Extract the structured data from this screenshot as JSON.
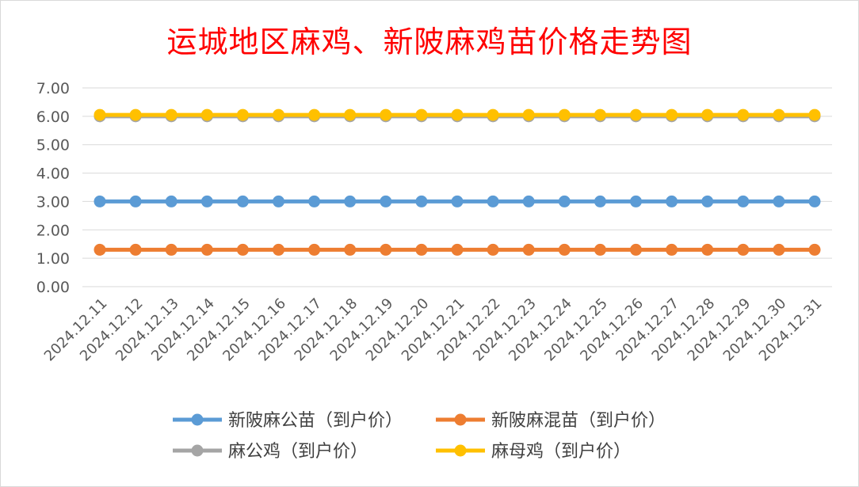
{
  "chart_data": {
    "type": "line",
    "title": "运城地区麻鸡、新陂麻鸡苗价格走势图",
    "categories": [
      "2024.12.11",
      "2024.12.12",
      "2024.12.13",
      "2024.12.14",
      "2024.12.15",
      "2024.12.16",
      "2024.12.17",
      "2024.12.18",
      "2024.12.19",
      "2024.12.20",
      "2024.12.21",
      "2024.12.22",
      "2024.12.23",
      "2024.12.24",
      "2024.12.25",
      "2024.12.26",
      "2024.12.27",
      "2024.12.28",
      "2024.12.29",
      "2024.12.30",
      "2024.12.31"
    ],
    "y_ticks": [
      "0.00",
      "1.00",
      "2.00",
      "3.00",
      "4.00",
      "5.00",
      "6.00",
      "7.00"
    ],
    "ylim": [
      0,
      7
    ],
    "grid": true,
    "legend_position": "bottom",
    "series": [
      {
        "name": "新陂麻公苗（到户价）",
        "color": "#5b9bd5",
        "values": [
          3,
          3,
          3,
          3,
          3,
          3,
          3,
          3,
          3,
          3,
          3,
          3,
          3,
          3,
          3,
          3,
          3,
          3,
          3,
          3,
          3
        ]
      },
      {
        "name": "新陂麻混苗（到户价）",
        "color": "#ed7d31",
        "values": [
          1.3,
          1.3,
          1.3,
          1.3,
          1.3,
          1.3,
          1.3,
          1.3,
          1.3,
          1.3,
          1.3,
          1.3,
          1.3,
          1.3,
          1.3,
          1.3,
          1.3,
          1.3,
          1.3,
          1.3,
          1.3
        ]
      },
      {
        "name": "麻公鸡（到户价）",
        "color": "#a5a5a5",
        "values": [
          6,
          6,
          6,
          6,
          6,
          6,
          6,
          6,
          6,
          6,
          6,
          6,
          6,
          6,
          6,
          6,
          6,
          6,
          6,
          6,
          6
        ]
      },
      {
        "name": "麻母鸡（到户价）",
        "color": "#ffc000",
        "values": [
          6.05,
          6.05,
          6.05,
          6.05,
          6.05,
          6.05,
          6.05,
          6.05,
          6.05,
          6.05,
          6.05,
          6.05,
          6.05,
          6.05,
          6.05,
          6.05,
          6.05,
          6.05,
          6.05,
          6.05,
          6.05
        ]
      }
    ]
  }
}
